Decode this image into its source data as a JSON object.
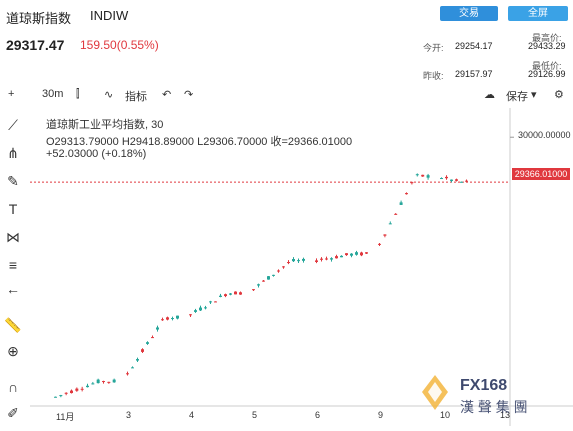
{
  "header": {
    "title": "道琼斯指数",
    "code": "INDIW",
    "trade_label": "交易",
    "full_label": "全屏",
    "price": "29317.47",
    "change": "159.50(0.55%)"
  },
  "stats": {
    "today_open_label": "今开:",
    "today_open": "29254.17",
    "high_label": "最高价:",
    "high": "29433.29",
    "prev_close_label": "昨收:",
    "prev_close": "29157.97",
    "low_label": "最低价:",
    "low": "29126.99"
  },
  "toolbar": {
    "interval": "30m",
    "indicators": "指标",
    "save": "保存"
  },
  "legend": {
    "title": "道琼斯工业平均指数, 30",
    "ohlc": "O29313.79000  H29418.89000  L29306.70000  收=29366.01000",
    "change": "+52.03000 (+0.18%)"
  },
  "price_axis": {
    "top_label": "30000.00000",
    "last_label": "29366.01000"
  },
  "time_axis": [
    "11月",
    "3",
    "4",
    "5",
    "6",
    "9",
    "10",
    "13"
  ],
  "colors": {
    "up": "#26a69a",
    "down": "#e0383e",
    "accent": "#2f8fdb"
  },
  "chart_data": {
    "type": "candlestick",
    "title": "道琼斯工业平均指数, 30",
    "x": [
      "11月",
      "3",
      "4",
      "5",
      "6",
      "9",
      "10"
    ],
    "approx_close_by_session": [
      26550,
      27450,
      27800,
      28250,
      28350,
      29450,
      29366
    ],
    "ylim": [
      26200,
      30300
    ],
    "last_price": 29366.01
  }
}
